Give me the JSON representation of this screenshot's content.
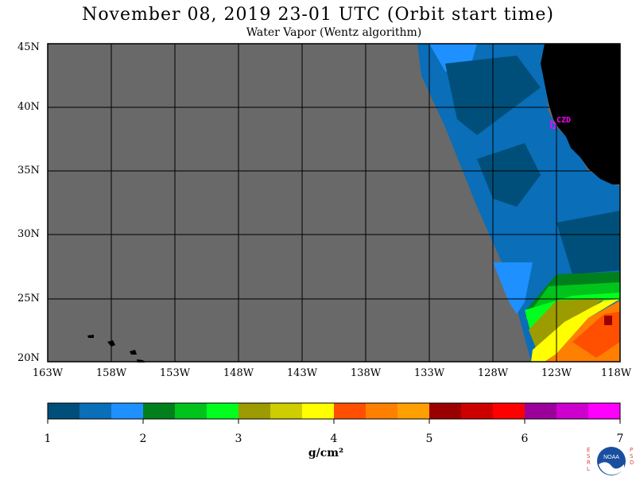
{
  "header": {
    "title": "November 08, 2019  23-01 UTC  (Orbit start time)",
    "subtitle": "Water Vapor (Wentz algorithm)"
  },
  "map": {
    "lat_labels": [
      "45N",
      "40N",
      "35N",
      "30N",
      "25N",
      "20N"
    ],
    "lon_labels": [
      "163W",
      "158W",
      "153W",
      "148W",
      "143W",
      "138W",
      "133W",
      "128W",
      "123W",
      "118W"
    ],
    "station_label": "CZD",
    "colors": {
      "no_data": "#696969",
      "land": "#000000",
      "grid": "#000000",
      "station": "#ff00ff"
    }
  },
  "colorbar": {
    "labels": [
      "1",
      "2",
      "3",
      "4",
      "5",
      "6",
      "7"
    ],
    "units": "g/cm²",
    "colors": [
      "#004f7a",
      "#0a6eb8",
      "#1e90ff",
      "#00801c",
      "#00c41c",
      "#00ff1e",
      "#9c9c00",
      "#cdcd00",
      "#ffff00",
      "#ff4f00",
      "#ff7f00",
      "#ffa000",
      "#9b0000",
      "#cd0000",
      "#ff0000",
      "#9b009b",
      "#cd00cd",
      "#ff00ff"
    ]
  },
  "logo": {
    "left_text": "ESRL",
    "right_text": "PSD",
    "center_text": "NOAA"
  }
}
